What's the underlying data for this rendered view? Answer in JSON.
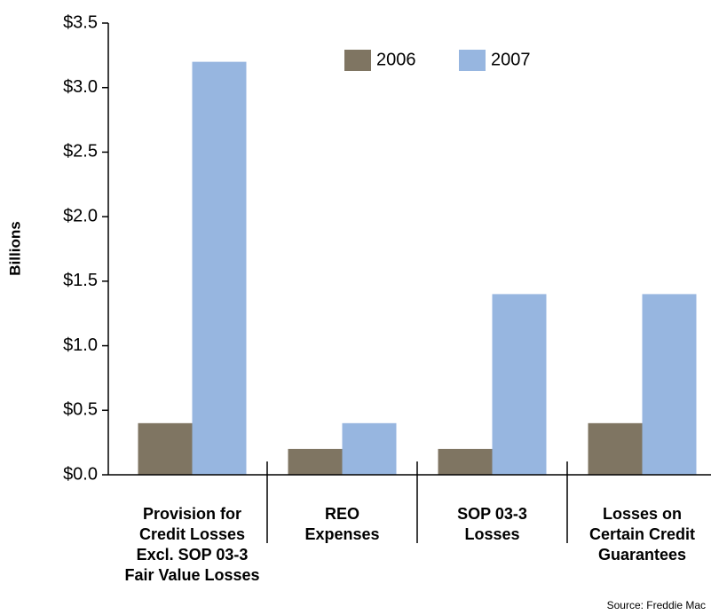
{
  "chart_data": {
    "type": "bar",
    "y_label": "Billions",
    "source": "Source: Freddie Mac",
    "categories": [
      "Provision for\nCredit Losses\nExcl. SOP 03-3\nFair Value Losses",
      "REO\nExpenses",
      "SOP 03-3\nLosses",
      "Losses on\nCertain Credit\nGuarantees"
    ],
    "series": [
      {
        "name": "2006",
        "color": "#7f7562",
        "values": [
          0.4,
          0.2,
          0.2,
          0.4
        ]
      },
      {
        "name": "2007",
        "color": "#97b6e0",
        "values": [
          3.2,
          0.4,
          1.4,
          1.4
        ]
      }
    ],
    "ylim": [
      0,
      3.5
    ],
    "yticks": [
      {
        "value": 0,
        "label": "$0.0"
      },
      {
        "value": 0.5,
        "label": "$0.5"
      },
      {
        "value": 1,
        "label": "$1.0"
      },
      {
        "value": 1.5,
        "label": "$1.5"
      },
      {
        "value": 2,
        "label": "$2.0"
      },
      {
        "value": 2.5,
        "label": "$2.5"
      },
      {
        "value": 3,
        "label": "$3.0"
      },
      {
        "value": 3.5,
        "label": "$3.5"
      }
    ],
    "legend": "top"
  }
}
